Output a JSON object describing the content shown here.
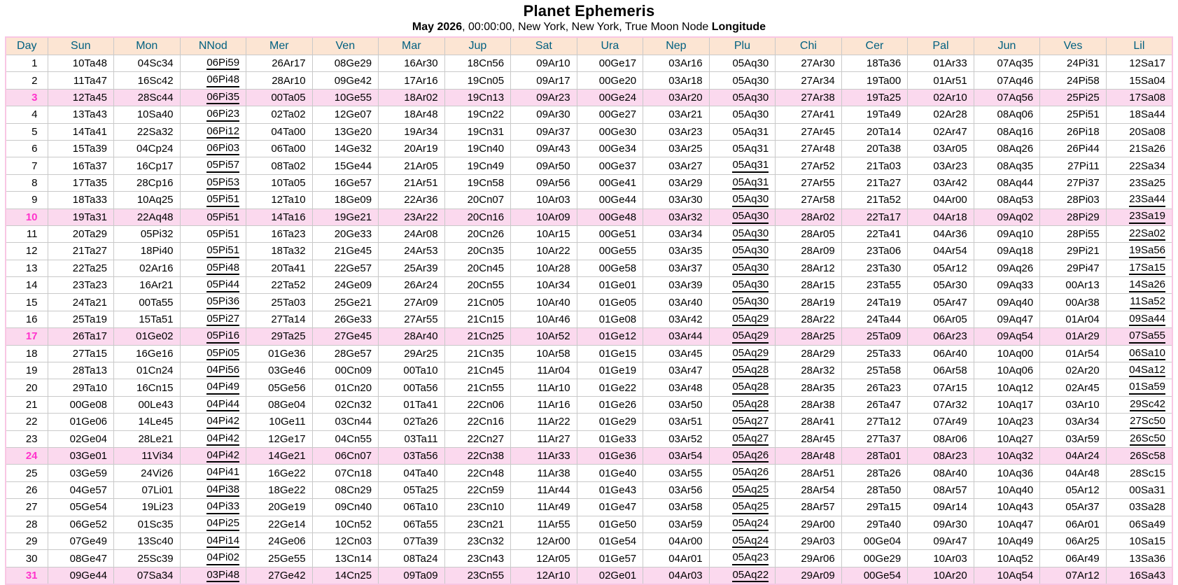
{
  "title": "Planet Ephemeris",
  "subtitle": {
    "parts": [
      {
        "text": "May 2026",
        "bold": true
      },
      {
        "text": ", 00:00:00, New York, New York, True Moon Node ",
        "bold": false
      },
      {
        "text": "Longitude",
        "bold": true
      }
    ]
  },
  "colors": {
    "header_bg": "#FCE5D3",
    "header_text": "#006080",
    "sunday_row_bg": "#FBD9EE",
    "sunday_day_text": "#FF33CC",
    "grid_line": "#C9C9C9",
    "outer_border": "#F8C6E3",
    "underline_marker_meaning": "retrograde value shown underlined"
  },
  "table": {
    "columns": [
      "Day",
      "Sun",
      "Mon",
      "NNod",
      "Mer",
      "Ven",
      "Mar",
      "Jup",
      "Sat",
      "Ura",
      "Nep",
      "Plu",
      "Chi",
      "Cer",
      "Pal",
      "Jun",
      "Ves",
      "Lil"
    ],
    "rows": [
      {
        "day": "1",
        "sunday": false,
        "cells": [
          "10Ta48",
          "04Sc34",
          "06Pi59*",
          "26Ar17",
          "08Ge29",
          "16Ar30",
          "18Cn56",
          "09Ar10",
          "00Ge17",
          "03Ar16",
          "05Aq30",
          "27Ar30",
          "18Ta36",
          "01Ar33",
          "07Aq35",
          "24Pi31",
          "12Sa17"
        ]
      },
      {
        "day": "2",
        "sunday": false,
        "cells": [
          "11Ta47",
          "16Sc42",
          "06Pi48*",
          "28Ar10",
          "09Ge42",
          "17Ar16",
          "19Cn05",
          "09Ar17",
          "00Ge20",
          "03Ar18",
          "05Aq30",
          "27Ar34",
          "19Ta00",
          "01Ar51",
          "07Aq46",
          "24Pi58",
          "15Sa04"
        ]
      },
      {
        "day": "3",
        "sunday": true,
        "cells": [
          "12Ta45",
          "28Sc44",
          "06Pi35*",
          "00Ta05",
          "10Ge55",
          "18Ar02",
          "19Cn13",
          "09Ar23",
          "00Ge24",
          "03Ar20",
          "05Aq30",
          "27Ar38",
          "19Ta25",
          "02Ar10",
          "07Aq56",
          "25Pi25",
          "17Sa08"
        ]
      },
      {
        "day": "4",
        "sunday": false,
        "cells": [
          "13Ta43",
          "10Sa40",
          "06Pi23*",
          "02Ta02",
          "12Ge07",
          "18Ar48",
          "19Cn22",
          "09Ar30",
          "00Ge27",
          "03Ar21",
          "05Aq30",
          "27Ar41",
          "19Ta49",
          "02Ar28",
          "08Aq06",
          "25Pi51",
          "18Sa44"
        ]
      },
      {
        "day": "5",
        "sunday": false,
        "cells": [
          "14Ta41",
          "22Sa32",
          "06Pi12*",
          "04Ta00",
          "13Ge20",
          "19Ar34",
          "19Cn31",
          "09Ar37",
          "00Ge30",
          "03Ar23",
          "05Aq31",
          "27Ar45",
          "20Ta14",
          "02Ar47",
          "08Aq16",
          "26Pi18",
          "20Sa08"
        ]
      },
      {
        "day": "6",
        "sunday": false,
        "cells": [
          "15Ta39",
          "04Cp24",
          "06Pi03*",
          "06Ta00",
          "14Ge32",
          "20Ar19",
          "19Cn40",
          "09Ar43",
          "00Ge34",
          "03Ar25",
          "05Aq31",
          "27Ar48",
          "20Ta38",
          "03Ar05",
          "08Aq26",
          "26Pi44",
          "21Sa26"
        ]
      },
      {
        "day": "7",
        "sunday": false,
        "cells": [
          "16Ta37",
          "16Cp17",
          "05Pi57*",
          "08Ta02",
          "15Ge44",
          "21Ar05",
          "19Cn49",
          "09Ar50",
          "00Ge37",
          "03Ar27",
          "05Aq31*",
          "27Ar52",
          "21Ta03",
          "03Ar23",
          "08Aq35",
          "27Pi11",
          "22Sa34"
        ]
      },
      {
        "day": "8",
        "sunday": false,
        "cells": [
          "17Ta35",
          "28Cp16",
          "05Pi53*",
          "10Ta05",
          "16Ge57",
          "21Ar51",
          "19Cn58",
          "09Ar56",
          "00Ge41",
          "03Ar29",
          "05Aq31*",
          "27Ar55",
          "21Ta27",
          "03Ar42",
          "08Aq44",
          "27Pi37",
          "23Sa25"
        ]
      },
      {
        "day": "9",
        "sunday": false,
        "cells": [
          "18Ta33",
          "10Aq25",
          "05Pi51*",
          "12Ta10",
          "18Ge09",
          "22Ar36",
          "20Cn07",
          "10Ar03",
          "00Ge44",
          "03Ar30",
          "05Aq30*",
          "27Ar58",
          "21Ta52",
          "04Ar00",
          "08Aq53",
          "28Pi03",
          "23Sa44*"
        ]
      },
      {
        "day": "10",
        "sunday": true,
        "cells": [
          "19Ta31",
          "22Aq48",
          "05Pi51",
          "14Ta16",
          "19Ge21",
          "23Ar22",
          "20Cn16",
          "10Ar09",
          "00Ge48",
          "03Ar32",
          "05Aq30*",
          "28Ar02",
          "22Ta17",
          "04Ar18",
          "09Aq02",
          "28Pi29",
          "23Sa19*"
        ]
      },
      {
        "day": "11",
        "sunday": false,
        "cells": [
          "20Ta29",
          "05Pi32",
          "05Pi51",
          "16Ta23",
          "20Ge33",
          "24Ar08",
          "20Cn26",
          "10Ar15",
          "00Ge51",
          "03Ar34",
          "05Aq30*",
          "28Ar05",
          "22Ta41",
          "04Ar36",
          "09Aq10",
          "28Pi55",
          "22Sa02*"
        ]
      },
      {
        "day": "12",
        "sunday": false,
        "cells": [
          "21Ta27",
          "18Pi40",
          "05Pi51*",
          "18Ta32",
          "21Ge45",
          "24Ar53",
          "20Cn35",
          "10Ar22",
          "00Ge55",
          "03Ar35",
          "05Aq30*",
          "28Ar09",
          "23Ta06",
          "04Ar54",
          "09Aq18",
          "29Pi21",
          "19Sa56*"
        ]
      },
      {
        "day": "13",
        "sunday": false,
        "cells": [
          "22Ta25",
          "02Ar16",
          "05Pi48*",
          "20Ta41",
          "22Ge57",
          "25Ar39",
          "20Cn45",
          "10Ar28",
          "00Ge58",
          "03Ar37",
          "05Aq30*",
          "28Ar12",
          "23Ta30",
          "05Ar12",
          "09Aq26",
          "29Pi47",
          "17Sa15*"
        ]
      },
      {
        "day": "14",
        "sunday": false,
        "cells": [
          "23Ta23",
          "16Ar21",
          "05Pi44*",
          "22Ta52",
          "24Ge09",
          "26Ar24",
          "20Cn55",
          "10Ar34",
          "01Ge01",
          "03Ar39",
          "05Aq30*",
          "28Ar15",
          "23Ta55",
          "05Ar30",
          "09Aq33",
          "00Ar13",
          "14Sa26*"
        ]
      },
      {
        "day": "15",
        "sunday": false,
        "cells": [
          "24Ta21",
          "00Ta55",
          "05Pi36*",
          "25Ta03",
          "25Ge21",
          "27Ar09",
          "21Cn05",
          "10Ar40",
          "01Ge05",
          "03Ar40",
          "05Aq30*",
          "28Ar19",
          "24Ta19",
          "05Ar47",
          "09Aq40",
          "00Ar38",
          "11Sa52*"
        ]
      },
      {
        "day": "16",
        "sunday": false,
        "cells": [
          "25Ta19",
          "15Ta51",
          "05Pi27*",
          "27Ta14",
          "26Ge33",
          "27Ar55",
          "21Cn15",
          "10Ar46",
          "01Ge08",
          "03Ar42",
          "05Aq29*",
          "28Ar22",
          "24Ta44",
          "06Ar05",
          "09Aq47",
          "01Ar04",
          "09Sa44*"
        ]
      },
      {
        "day": "17",
        "sunday": true,
        "cells": [
          "26Ta17",
          "01Ge02",
          "05Pi16*",
          "29Ta25",
          "27Ge45",
          "28Ar40",
          "21Cn25",
          "10Ar52",
          "01Ge12",
          "03Ar44",
          "05Aq29*",
          "28Ar25",
          "25Ta09",
          "06Ar23",
          "09Aq54",
          "01Ar29",
          "07Sa55*"
        ]
      },
      {
        "day": "18",
        "sunday": false,
        "cells": [
          "27Ta15",
          "16Ge16",
          "05Pi05*",
          "01Ge36",
          "28Ge57",
          "29Ar25",
          "21Cn35",
          "10Ar58",
          "01Ge15",
          "03Ar45",
          "05Aq29*",
          "28Ar29",
          "25Ta33",
          "06Ar40",
          "10Aq00",
          "01Ar54",
          "06Sa10*"
        ]
      },
      {
        "day": "19",
        "sunday": false,
        "cells": [
          "28Ta13",
          "01Cn24",
          "04Pi56*",
          "03Ge46",
          "00Cn09",
          "00Ta10",
          "21Cn45",
          "11Ar04",
          "01Ge19",
          "03Ar47",
          "05Aq28*",
          "28Ar32",
          "25Ta58",
          "06Ar58",
          "10Aq06",
          "02Ar20",
          "04Sa12*"
        ]
      },
      {
        "day": "20",
        "sunday": false,
        "cells": [
          "29Ta10",
          "16Cn15",
          "04Pi49*",
          "05Ge56",
          "01Cn20",
          "00Ta56",
          "21Cn55",
          "11Ar10",
          "01Ge22",
          "03Ar48",
          "05Aq28*",
          "28Ar35",
          "26Ta23",
          "07Ar15",
          "10Aq12",
          "02Ar45",
          "01Sa59*"
        ]
      },
      {
        "day": "21",
        "sunday": false,
        "cells": [
          "00Ge08",
          "00Le43",
          "04Pi44*",
          "08Ge04",
          "02Cn32",
          "01Ta41",
          "22Cn06",
          "11Ar16",
          "01Ge26",
          "03Ar50",
          "05Aq28*",
          "28Ar38",
          "26Ta47",
          "07Ar32",
          "10Aq17",
          "03Ar10",
          "29Sc42*"
        ]
      },
      {
        "day": "22",
        "sunday": false,
        "cells": [
          "01Ge06",
          "14Le45",
          "04Pi42*",
          "10Ge11",
          "03Cn44",
          "02Ta26",
          "22Cn16",
          "11Ar22",
          "01Ge29",
          "03Ar51",
          "05Aq27*",
          "28Ar41",
          "27Ta12",
          "07Ar49",
          "10Aq23",
          "03Ar34",
          "27Sc50*"
        ]
      },
      {
        "day": "23",
        "sunday": false,
        "cells": [
          "02Ge04",
          "28Le21",
          "04Pi42*",
          "12Ge17",
          "04Cn55",
          "03Ta11",
          "22Cn27",
          "11Ar27",
          "01Ge33",
          "03Ar52",
          "05Aq27*",
          "28Ar45",
          "27Ta37",
          "08Ar06",
          "10Aq27",
          "03Ar59",
          "26Sc50*"
        ]
      },
      {
        "day": "24",
        "sunday": true,
        "cells": [
          "03Ge01",
          "11Vi34",
          "04Pi42*",
          "14Ge21",
          "06Cn07",
          "03Ta56",
          "22Cn38",
          "11Ar33",
          "01Ge36",
          "03Ar54",
          "05Aq26*",
          "28Ar48",
          "28Ta01",
          "08Ar23",
          "10Aq32",
          "04Ar24",
          "26Sc58"
        ]
      },
      {
        "day": "25",
        "sunday": false,
        "cells": [
          "03Ge59",
          "24Vi26",
          "04Pi41*",
          "16Ge22",
          "07Cn18",
          "04Ta40",
          "22Cn48",
          "11Ar38",
          "01Ge40",
          "03Ar55",
          "05Aq26*",
          "28Ar51",
          "28Ta26",
          "08Ar40",
          "10Aq36",
          "04Ar48",
          "28Sc15"
        ]
      },
      {
        "day": "26",
        "sunday": false,
        "cells": [
          "04Ge57",
          "07Li01",
          "04Pi38*",
          "18Ge22",
          "08Cn29",
          "05Ta25",
          "22Cn59",
          "11Ar44",
          "01Ge43",
          "03Ar56",
          "05Aq25*",
          "28Ar54",
          "28Ta50",
          "08Ar57",
          "10Aq40",
          "05Ar12",
          "00Sa31"
        ]
      },
      {
        "day": "27",
        "sunday": false,
        "cells": [
          "05Ge54",
          "19Li23",
          "04Pi33*",
          "20Ge19",
          "09Cn40",
          "06Ta10",
          "23Cn10",
          "11Ar49",
          "01Ge47",
          "03Ar58",
          "05Aq25*",
          "28Ar57",
          "29Ta15",
          "09Ar14",
          "10Aq43",
          "05Ar37",
          "03Sa28"
        ]
      },
      {
        "day": "28",
        "sunday": false,
        "cells": [
          "06Ge52",
          "01Sc35",
          "04Pi25*",
          "22Ge14",
          "10Cn52",
          "06Ta55",
          "23Cn21",
          "11Ar55",
          "01Ge50",
          "03Ar59",
          "05Aq24*",
          "29Ar00",
          "29Ta40",
          "09Ar30",
          "10Aq47",
          "06Ar01",
          "06Sa49"
        ]
      },
      {
        "day": "29",
        "sunday": false,
        "cells": [
          "07Ge49",
          "13Sc40",
          "04Pi14*",
          "24Ge06",
          "12Cn03",
          "07Ta39",
          "23Cn32",
          "12Ar00",
          "01Ge54",
          "04Ar00",
          "05Aq24*",
          "29Ar03",
          "00Ge04",
          "09Ar47",
          "10Aq49",
          "06Ar25",
          "10Sa15"
        ]
      },
      {
        "day": "30",
        "sunday": false,
        "cells": [
          "08Ge47",
          "25Sc39",
          "04Pi02*",
          "25Ge55",
          "13Cn14",
          "08Ta24",
          "23Cn43",
          "12Ar05",
          "01Ge57",
          "04Ar01",
          "05Aq23*",
          "29Ar06",
          "00Ge29",
          "10Ar03",
          "10Aq52",
          "06Ar49",
          "13Sa36"
        ]
      },
      {
        "day": "31",
        "sunday": true,
        "cells": [
          "09Ge44",
          "07Sa34",
          "03Pi48*",
          "27Ge42",
          "14Cn25",
          "09Ta09",
          "23Cn55",
          "12Ar10",
          "02Ge01",
          "04Ar03",
          "05Aq22*",
          "29Ar09",
          "00Ge54",
          "10Ar20",
          "10Aq54",
          "07Ar12",
          "16Sa43"
        ]
      }
    ]
  }
}
